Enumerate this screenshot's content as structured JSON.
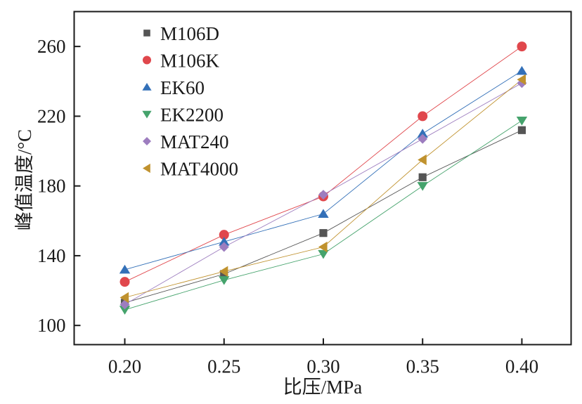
{
  "chart_data": {
    "type": "line",
    "title": "",
    "xlabel": "比压/MPa",
    "ylabel": "峰值温度/°C",
    "x": [
      0.2,
      0.25,
      0.3,
      0.35,
      0.4
    ],
    "xticks": [
      "0.20",
      "0.25",
      "0.30",
      "0.35",
      "0.40"
    ],
    "yticks": [
      "100",
      "140",
      "180",
      "220",
      "260"
    ],
    "ytick_values": [
      100,
      140,
      180,
      220,
      260
    ],
    "xlim": [
      0.1745,
      0.4248
    ],
    "ylim": [
      89,
      280
    ],
    "grid": false,
    "legend_position": "top-left",
    "series": [
      {
        "name": "M106D",
        "marker": "square",
        "color": "#555555",
        "values": [
          113,
          129.5,
          153,
          185,
          212
        ]
      },
      {
        "name": "M106K",
        "marker": "circle",
        "color": "#e0474c",
        "values": [
          125,
          152,
          174,
          220,
          260
        ]
      },
      {
        "name": "EK60",
        "marker": "triangle-up",
        "color": "#3370b8",
        "values": [
          132,
          148,
          164,
          210,
          246
        ]
      },
      {
        "name": "EK2200",
        "marker": "triangle-down",
        "color": "#45a36c",
        "values": [
          109,
          126,
          141,
          180,
          217.5
        ]
      },
      {
        "name": "MAT240",
        "marker": "diamond",
        "color": "#9d7dbf",
        "values": [
          112,
          145,
          175,
          207,
          239
        ]
      },
      {
        "name": "MAT4000",
        "marker": "triangle-left",
        "color": "#c0922e",
        "values": [
          116,
          131,
          145,
          195,
          241
        ]
      }
    ]
  }
}
